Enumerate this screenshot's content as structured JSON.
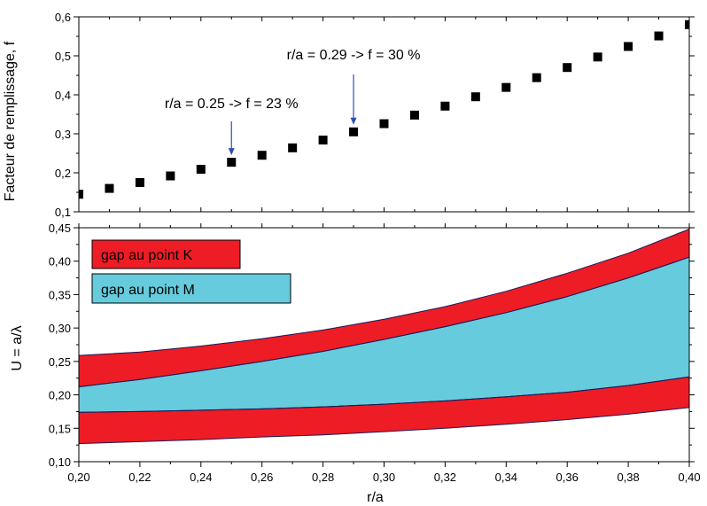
{
  "chart_data": [
    {
      "type": "scatter",
      "ylabel": "Facteur de remplissage, f",
      "xlim": [
        0.2,
        0.4
      ],
      "ylim": [
        0.1,
        0.6
      ],
      "yticks": [
        "0,1",
        "0,2",
        "0,3",
        "0,4",
        "0,5",
        "0,6"
      ],
      "ytick_values": [
        0.1,
        0.2,
        0.3,
        0.4,
        0.5,
        0.6
      ],
      "points": {
        "x": [
          0.2,
          0.21,
          0.22,
          0.23,
          0.24,
          0.25,
          0.26,
          0.27,
          0.28,
          0.29,
          0.3,
          0.31,
          0.32,
          0.33,
          0.34,
          0.35,
          0.36,
          0.37,
          0.38,
          0.39,
          0.4
        ],
        "y": [
          0.145,
          0.16,
          0.175,
          0.192,
          0.209,
          0.227,
          0.245,
          0.264,
          0.284,
          0.305,
          0.326,
          0.348,
          0.371,
          0.395,
          0.419,
          0.444,
          0.47,
          0.497,
          0.524,
          0.551,
          0.58
        ]
      },
      "marker_color": "#000000",
      "annotations": [
        {
          "text": "r/a = 0.25 -> f = 23 %",
          "x": 0.25,
          "y": 0.227
        },
        {
          "text": "r/a = 0.29 -> f = 30 %",
          "x": 0.29,
          "y": 0.305
        }
      ],
      "arrow_color": "#3050b0"
    },
    {
      "type": "area",
      "xlabel": "r/a",
      "ylabel": "U = a/λ",
      "xlim": [
        0.2,
        0.4
      ],
      "ylim": [
        0.1,
        0.45
      ],
      "xticks": [
        "0,20",
        "0,22",
        "0,24",
        "0,26",
        "0,28",
        "0,30",
        "0,32",
        "0,34",
        "0,36",
        "0,38",
        "0,40"
      ],
      "xtick_values": [
        0.2,
        0.22,
        0.24,
        0.26,
        0.28,
        0.3,
        0.32,
        0.34,
        0.36,
        0.38,
        0.4
      ],
      "yticks": [
        "0,10",
        "0,15",
        "0,20",
        "0,25",
        "0,30",
        "0,35",
        "0,40",
        "0,45"
      ],
      "ytick_values": [
        0.1,
        0.15,
        0.2,
        0.25,
        0.3,
        0.35,
        0.4,
        0.45
      ],
      "x": [
        0.2,
        0.22,
        0.24,
        0.26,
        0.28,
        0.3,
        0.32,
        0.34,
        0.36,
        0.38,
        0.4
      ],
      "series": [
        {
          "name": "gap au point K",
          "color": "#ee1c25",
          "bands": [
            {
              "lower": [
                0.127,
                0.13,
                0.133,
                0.137,
                0.14,
                0.145,
                0.15,
                0.156,
                0.163,
                0.171,
                0.181
              ],
              "upper": [
                0.174,
                0.175,
                0.177,
                0.179,
                0.182,
                0.186,
                0.191,
                0.197,
                0.204,
                0.214,
                0.227
              ]
            },
            {
              "lower": [
                0.212,
                0.223,
                0.236,
                0.25,
                0.265,
                0.283,
                0.302,
                0.323,
                0.347,
                0.375,
                0.406
              ],
              "upper": [
                0.259,
                0.264,
                0.273,
                0.284,
                0.297,
                0.313,
                0.332,
                0.355,
                0.382,
                0.412,
                0.448
              ]
            }
          ]
        },
        {
          "name": "gap au point M",
          "color": "#66cbdc",
          "bands": [
            {
              "lower": [
                0.174,
                0.175,
                0.177,
                0.179,
                0.182,
                0.186,
                0.191,
                0.197,
                0.204,
                0.214,
                0.227
              ],
              "upper": [
                0.212,
                0.223,
                0.236,
                0.25,
                0.265,
                0.283,
                0.302,
                0.323,
                0.347,
                0.375,
                0.406
              ]
            }
          ]
        }
      ],
      "legend_location": "top-left"
    }
  ]
}
